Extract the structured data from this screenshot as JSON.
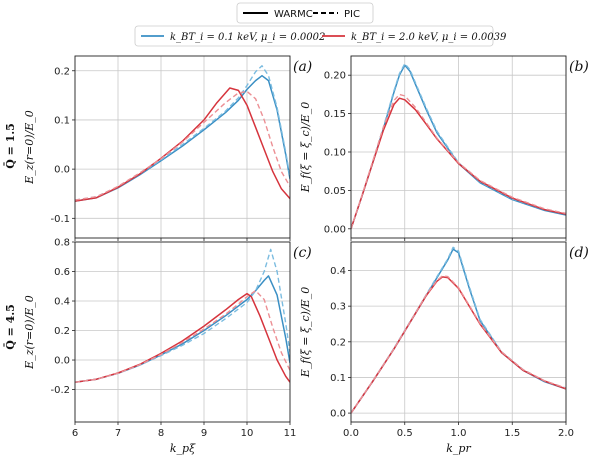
{
  "legend_style": {
    "solid_label": "WARMC",
    "dashed_label": "PIC"
  },
  "legend_series": [
    {
      "label": "k_BT_i = 0.1 keV, μ_i = 0.0002",
      "color": "#3a8fc4"
    },
    {
      "label": "k_BT_i = 2.0 keV, μ_i = 0.0039",
      "color": "#d6343d"
    }
  ],
  "row_labels": [
    "Q̄ = 1.5",
    "Q̄ = 4.5"
  ],
  "chart_data": [
    {
      "id": "a",
      "panel_label": "(a)",
      "type": "line",
      "xlabel": "",
      "ylabel": "E_z(r=0)/E_0",
      "xlim": [
        6,
        11
      ],
      "ylim": [
        -0.14,
        0.23
      ],
      "xticks": [
        6,
        7,
        8,
        9,
        10,
        11
      ],
      "yticks": [
        -0.1,
        0.0,
        0.1,
        0.2
      ],
      "xticklabels_visible": false,
      "grid": true,
      "series": [
        {
          "group": 0,
          "style": "solid",
          "x": [
            6.0,
            6.5,
            7.0,
            7.5,
            8.0,
            8.5,
            9.0,
            9.5,
            9.8,
            10.0,
            10.2,
            10.35,
            10.5,
            10.7,
            10.9,
            11.0
          ],
          "y": [
            -0.065,
            -0.058,
            -0.038,
            -0.012,
            0.017,
            0.047,
            0.08,
            0.115,
            0.14,
            0.162,
            0.18,
            0.19,
            0.18,
            0.12,
            0.03,
            -0.02
          ]
        },
        {
          "group": 0,
          "style": "dashed",
          "x": [
            6.0,
            6.5,
            7.0,
            7.5,
            8.0,
            8.5,
            9.0,
            9.5,
            9.8,
            10.0,
            10.2,
            10.35,
            10.5,
            10.7,
            10.9,
            11.0
          ],
          "y": [
            -0.063,
            -0.056,
            -0.036,
            -0.01,
            0.019,
            0.05,
            0.083,
            0.118,
            0.145,
            0.17,
            0.198,
            0.21,
            0.19,
            0.125,
            0.035,
            -0.015
          ]
        },
        {
          "group": 1,
          "style": "solid",
          "x": [
            6.0,
            6.5,
            7.0,
            7.5,
            8.0,
            8.5,
            9.0,
            9.3,
            9.6,
            9.8,
            10.0,
            10.2,
            10.4,
            10.6,
            10.8,
            11.0
          ],
          "y": [
            -0.065,
            -0.058,
            -0.037,
            -0.01,
            0.022,
            0.057,
            0.1,
            0.135,
            0.165,
            0.16,
            0.13,
            0.085,
            0.04,
            -0.005,
            -0.04,
            -0.06
          ]
        },
        {
          "group": 1,
          "style": "dashed",
          "x": [
            6.0,
            6.5,
            7.0,
            7.5,
            8.0,
            8.5,
            9.0,
            9.5,
            9.8,
            10.0,
            10.2,
            10.4,
            10.6,
            10.8,
            11.0
          ],
          "y": [
            -0.063,
            -0.056,
            -0.035,
            -0.008,
            0.021,
            0.055,
            0.095,
            0.135,
            0.155,
            0.158,
            0.143,
            0.1,
            0.045,
            -0.005,
            -0.035
          ]
        }
      ]
    },
    {
      "id": "b",
      "panel_label": "(b)",
      "type": "line",
      "xlabel": "",
      "ylabel": "E_f(ξ = ξ_c)/E_0",
      "xlim": [
        0.0,
        2.0
      ],
      "ylim": [
        -0.012,
        0.225
      ],
      "xticks": [
        0.0,
        0.5,
        1.0,
        1.5,
        2.0
      ],
      "yticks": [
        0.0,
        0.05,
        0.1,
        0.15,
        0.2
      ],
      "xticklabels_visible": false,
      "grid": true,
      "series": [
        {
          "group": 0,
          "style": "solid",
          "x": [
            0.0,
            0.1,
            0.2,
            0.3,
            0.4,
            0.45,
            0.5,
            0.55,
            0.6,
            0.7,
            0.8,
            1.0,
            1.2,
            1.5,
            1.8,
            2.0
          ],
          "y": [
            0.0,
            0.042,
            0.085,
            0.13,
            0.178,
            0.2,
            0.213,
            0.205,
            0.188,
            0.155,
            0.125,
            0.085,
            0.06,
            0.038,
            0.024,
            0.018
          ]
        },
        {
          "group": 0,
          "style": "dashed",
          "x": [
            0.0,
            0.1,
            0.2,
            0.3,
            0.4,
            0.45,
            0.5,
            0.55,
            0.6,
            0.7,
            0.8,
            1.0,
            1.2,
            1.5,
            1.8,
            2.0
          ],
          "y": [
            0.0,
            0.042,
            0.086,
            0.132,
            0.18,
            0.202,
            0.215,
            0.207,
            0.19,
            0.157,
            0.127,
            0.086,
            0.061,
            0.039,
            0.025,
            0.019
          ]
        },
        {
          "group": 1,
          "style": "solid",
          "x": [
            0.0,
            0.1,
            0.2,
            0.3,
            0.4,
            0.45,
            0.5,
            0.6,
            0.7,
            0.8,
            1.0,
            1.2,
            1.5,
            1.8,
            2.0
          ],
          "y": [
            0.0,
            0.042,
            0.085,
            0.128,
            0.162,
            0.17,
            0.168,
            0.155,
            0.136,
            0.117,
            0.085,
            0.062,
            0.04,
            0.025,
            0.019
          ]
        },
        {
          "group": 1,
          "style": "dashed",
          "x": [
            0.0,
            0.1,
            0.2,
            0.3,
            0.4,
            0.45,
            0.5,
            0.6,
            0.7,
            0.8,
            1.0,
            1.2,
            1.5,
            1.8,
            2.0
          ],
          "y": [
            0.0,
            0.043,
            0.087,
            0.132,
            0.167,
            0.175,
            0.173,
            0.158,
            0.138,
            0.118,
            0.086,
            0.063,
            0.041,
            0.026,
            0.02
          ]
        }
      ]
    },
    {
      "id": "c",
      "panel_label": "(c)",
      "type": "line",
      "xlabel": "k_pξ",
      "ylabel": "E_z(r=0)/E_0",
      "xlim": [
        6,
        11
      ],
      "ylim": [
        -0.42,
        0.8
      ],
      "xticks": [
        6,
        7,
        8,
        9,
        10,
        11
      ],
      "yticks": [
        -0.2,
        0.0,
        0.2,
        0.4,
        0.6,
        0.8
      ],
      "xticklabels_visible": true,
      "grid": true,
      "series": [
        {
          "group": 0,
          "style": "solid",
          "x": [
            6.0,
            6.5,
            7.0,
            7.5,
            8.0,
            8.5,
            9.0,
            9.5,
            10.0,
            10.2,
            10.4,
            10.5,
            10.7,
            10.9,
            11.0
          ],
          "y": [
            -0.15,
            -0.13,
            -0.09,
            -0.035,
            0.035,
            0.11,
            0.2,
            0.3,
            0.41,
            0.47,
            0.54,
            0.57,
            0.44,
            0.15,
            -0.02
          ]
        },
        {
          "group": 0,
          "style": "dashed",
          "x": [
            6.0,
            6.5,
            7.0,
            7.5,
            8.0,
            8.5,
            9.0,
            9.5,
            10.0,
            10.2,
            10.4,
            10.55,
            10.7,
            10.9,
            11.0
          ],
          "y": [
            -0.15,
            -0.13,
            -0.09,
            -0.035,
            0.03,
            0.1,
            0.18,
            0.28,
            0.39,
            0.47,
            0.6,
            0.75,
            0.6,
            0.25,
            0.05
          ]
        },
        {
          "group": 1,
          "style": "solid",
          "x": [
            6.0,
            6.5,
            7.0,
            7.5,
            8.0,
            8.5,
            9.0,
            9.5,
            9.8,
            10.0,
            10.1,
            10.3,
            10.5,
            10.7,
            10.9,
            11.0
          ],
          "y": [
            -0.15,
            -0.13,
            -0.088,
            -0.03,
            0.045,
            0.13,
            0.23,
            0.34,
            0.41,
            0.45,
            0.43,
            0.3,
            0.15,
            0.0,
            -0.11,
            -0.15
          ]
        },
        {
          "group": 1,
          "style": "dashed",
          "x": [
            6.0,
            6.5,
            7.0,
            7.5,
            8.0,
            8.5,
            9.0,
            9.5,
            9.8,
            10.0,
            10.2,
            10.4,
            10.6,
            10.8,
            11.0
          ],
          "y": [
            -0.15,
            -0.13,
            -0.09,
            -0.033,
            0.038,
            0.12,
            0.21,
            0.31,
            0.38,
            0.43,
            0.47,
            0.41,
            0.22,
            0.05,
            -0.07
          ]
        }
      ]
    },
    {
      "id": "d",
      "panel_label": "(d)",
      "type": "line",
      "xlabel": "k_pr",
      "ylabel": "E_f(ξ = ξ_c)/E_0",
      "xlim": [
        0.0,
        2.0
      ],
      "ylim": [
        -0.025,
        0.48
      ],
      "xticks": [
        0.0,
        0.5,
        1.0,
        1.5,
        2.0
      ],
      "yticks": [
        0.0,
        0.1,
        0.2,
        0.3,
        0.4
      ],
      "xticklabels_visible": true,
      "grid": true,
      "series": [
        {
          "group": 0,
          "style": "solid",
          "x": [
            0.0,
            0.2,
            0.4,
            0.6,
            0.8,
            0.9,
            0.95,
            1.0,
            1.1,
            1.2,
            1.4,
            1.6,
            1.8,
            2.0
          ],
          "y": [
            0.0,
            0.088,
            0.18,
            0.28,
            0.38,
            0.43,
            0.46,
            0.45,
            0.35,
            0.26,
            0.17,
            0.12,
            0.088,
            0.068
          ]
        },
        {
          "group": 0,
          "style": "dashed",
          "x": [
            0.0,
            0.2,
            0.4,
            0.6,
            0.8,
            0.9,
            0.95,
            1.0,
            1.1,
            1.2,
            1.4,
            1.6,
            1.8,
            2.0
          ],
          "y": [
            0.0,
            0.089,
            0.182,
            0.282,
            0.383,
            0.433,
            0.465,
            0.455,
            0.355,
            0.263,
            0.172,
            0.122,
            0.09,
            0.07
          ]
        },
        {
          "group": 1,
          "style": "solid",
          "x": [
            0.0,
            0.2,
            0.4,
            0.6,
            0.7,
            0.8,
            0.85,
            0.9,
            1.0,
            1.1,
            1.2,
            1.4,
            1.6,
            1.8,
            2.0
          ],
          "y": [
            0.0,
            0.088,
            0.18,
            0.28,
            0.33,
            0.37,
            0.382,
            0.38,
            0.35,
            0.3,
            0.25,
            0.17,
            0.12,
            0.09,
            0.068
          ]
        },
        {
          "group": 1,
          "style": "dashed",
          "x": [
            0.0,
            0.2,
            0.4,
            0.6,
            0.7,
            0.8,
            0.85,
            0.9,
            1.0,
            1.1,
            1.2,
            1.4,
            1.6,
            1.8,
            2.0
          ],
          "y": [
            0.0,
            0.089,
            0.181,
            0.281,
            0.332,
            0.372,
            0.385,
            0.383,
            0.352,
            0.302,
            0.252,
            0.172,
            0.122,
            0.091,
            0.07
          ]
        }
      ]
    }
  ]
}
